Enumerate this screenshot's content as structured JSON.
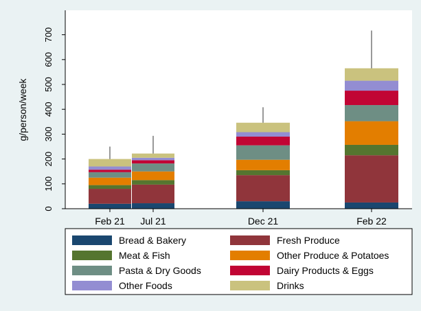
{
  "chart_data": {
    "type": "bar",
    "stacked": true,
    "categories": [
      "Feb 21",
      "Jul 21",
      "Dec 21",
      "Feb 22"
    ],
    "ylabel": "g/person/week",
    "xlabel": "",
    "ylim": [
      0,
      790
    ],
    "yticks": [
      0,
      100,
      200,
      300,
      400,
      500,
      600,
      700
    ],
    "grid": false,
    "legend_position": "bottom",
    "series": [
      {
        "name": "Bread & Bakery",
        "color": "#1a476f",
        "values": [
          20,
          22,
          30,
          25
        ]
      },
      {
        "name": "Fresh Produce",
        "color": "#90353b",
        "values": [
          60,
          75,
          105,
          190
        ]
      },
      {
        "name": "Meat & Fish",
        "color": "#55752f",
        "values": [
          15,
          18,
          20,
          42
        ]
      },
      {
        "name": "Other Produce & Potatoes",
        "color": "#e37e00",
        "values": [
          30,
          35,
          42,
          95
        ]
      },
      {
        "name": "Pasta & Dry Goods",
        "color": "#6e8e84",
        "values": [
          22,
          32,
          58,
          65
        ]
      },
      {
        "name": "Dairy Products & Eggs",
        "color": "#c10534",
        "values": [
          10,
          13,
          35,
          58
        ]
      },
      {
        "name": "Other Foods",
        "color": "#938dd2",
        "values": [
          13,
          10,
          18,
          40
        ]
      },
      {
        "name": "Drinks",
        "color": "#cac27e",
        "values": [
          30,
          17,
          38,
          50
        ]
      }
    ],
    "error_bar_tops": [
      250,
      293,
      408,
      717
    ]
  }
}
